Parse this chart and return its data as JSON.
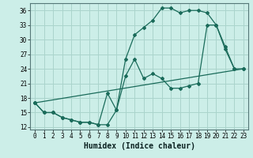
{
  "xlabel": "Humidex (Indice chaleur)",
  "bg_color": "#cceee8",
  "grid_color": "#aad4cc",
  "line_color": "#1a6b5a",
  "xlim": [
    -0.5,
    23.5
  ],
  "ylim": [
    11.5,
    37.5
  ],
  "yticks": [
    12,
    15,
    18,
    21,
    24,
    27,
    30,
    33,
    36
  ],
  "xticks": [
    0,
    1,
    2,
    3,
    4,
    5,
    6,
    7,
    8,
    9,
    10,
    11,
    12,
    13,
    14,
    15,
    16,
    17,
    18,
    19,
    20,
    21,
    22,
    23
  ],
  "line1_x": [
    0,
    1,
    2,
    3,
    4,
    5,
    6,
    7,
    8,
    9,
    10,
    11,
    12,
    13,
    14,
    15,
    16,
    17,
    18,
    19,
    20,
    21,
    22
  ],
  "line1_y": [
    17,
    15,
    15,
    14,
    13.5,
    13,
    13,
    12.5,
    19,
    15.5,
    26,
    31,
    32.5,
    34,
    36.5,
    36.5,
    35.5,
    36,
    36,
    35.5,
    33,
    28.5,
    24
  ],
  "line2_x": [
    0,
    1,
    2,
    3,
    4,
    5,
    6,
    7,
    8,
    9,
    10,
    11,
    12,
    13,
    14,
    15,
    16,
    17,
    18,
    19,
    20,
    21,
    22,
    23
  ],
  "line2_y": [
    17,
    15,
    15,
    14,
    13.5,
    13,
    13,
    12.5,
    12.5,
    15.5,
    22.5,
    26,
    22,
    23,
    22,
    20,
    20,
    20.5,
    21,
    33,
    33,
    28,
    24,
    24
  ],
  "line3_x": [
    0,
    23
  ],
  "line3_y": [
    17,
    24
  ],
  "tick_fontsize": 5.5,
  "xlabel_fontsize": 7
}
